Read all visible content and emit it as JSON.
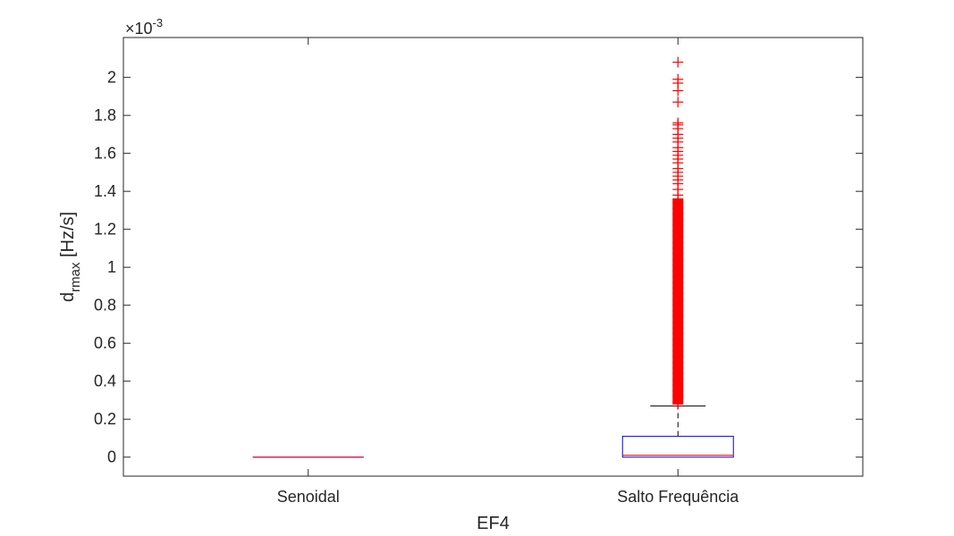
{
  "chart_data": {
    "type": "boxplot",
    "xlabel": "EF4",
    "ylabel": {
      "base": "d",
      "subscript": "rmax",
      "rest": " [Hz/s]"
    },
    "exponent_label": {
      "prefix": "×10",
      "power": "-3"
    },
    "ylim": [
      -0.0001,
      0.00221
    ],
    "yticks": [
      0,
      0.0002,
      0.0004,
      0.0006,
      0.0008,
      0.001,
      0.0012,
      0.0014,
      0.0016,
      0.0018,
      0.002
    ],
    "ytick_labels": [
      "0",
      "0.2",
      "0.4",
      "0.6",
      "0.8",
      "1",
      "1.2",
      "1.4",
      "1.6",
      "1.8",
      "2"
    ],
    "categories": [
      "Senoidal",
      "Salto Frequência"
    ],
    "boxes": [
      {
        "category": "Senoidal",
        "q1": 0,
        "median": 0,
        "q3": 0,
        "whisker_low": 0,
        "whisker_high": 0,
        "outliers": []
      },
      {
        "category": "Salto Frequência",
        "q1": 0.0,
        "median": 1e-05,
        "q3": 0.00011,
        "whisker_low": 0,
        "whisker_high": 0.00027,
        "outliers": [
          0.00208,
          0.00199,
          0.00197,
          0.00193,
          0.00187,
          0.00176,
          0.00175,
          0.00173,
          0.0017,
          0.00168,
          0.00166,
          0.00163,
          0.00161,
          0.00159,
          0.00157,
          0.00155,
          0.00152,
          0.0015,
          0.00148,
          0.00146,
          0.00144,
          0.00141,
          0.00138,
          0.00136,
          0.00134,
          0.00131,
          0.00128,
          0.00125,
          0.00122,
          0.00119,
          0.00116,
          0.00113,
          0.0011,
          0.00107,
          0.00104,
          0.00101,
          0.00098,
          0.00095,
          0.00092,
          0.00089,
          0.00086,
          0.00083,
          0.0008,
          0.00077,
          0.00074,
          0.00071,
          0.00068,
          0.00065,
          0.00062,
          0.00059,
          0.00056,
          0.00053,
          0.0005,
          0.00047,
          0.00044,
          0.00041,
          0.00038,
          0.00035,
          0.00032,
          0.00029,
          0.00028
        ]
      }
    ],
    "colors": {
      "box": "#0000ff",
      "median": "#ff0000",
      "whisker": "#000000",
      "outlier": "#ff0000",
      "axes": "#262626"
    }
  }
}
